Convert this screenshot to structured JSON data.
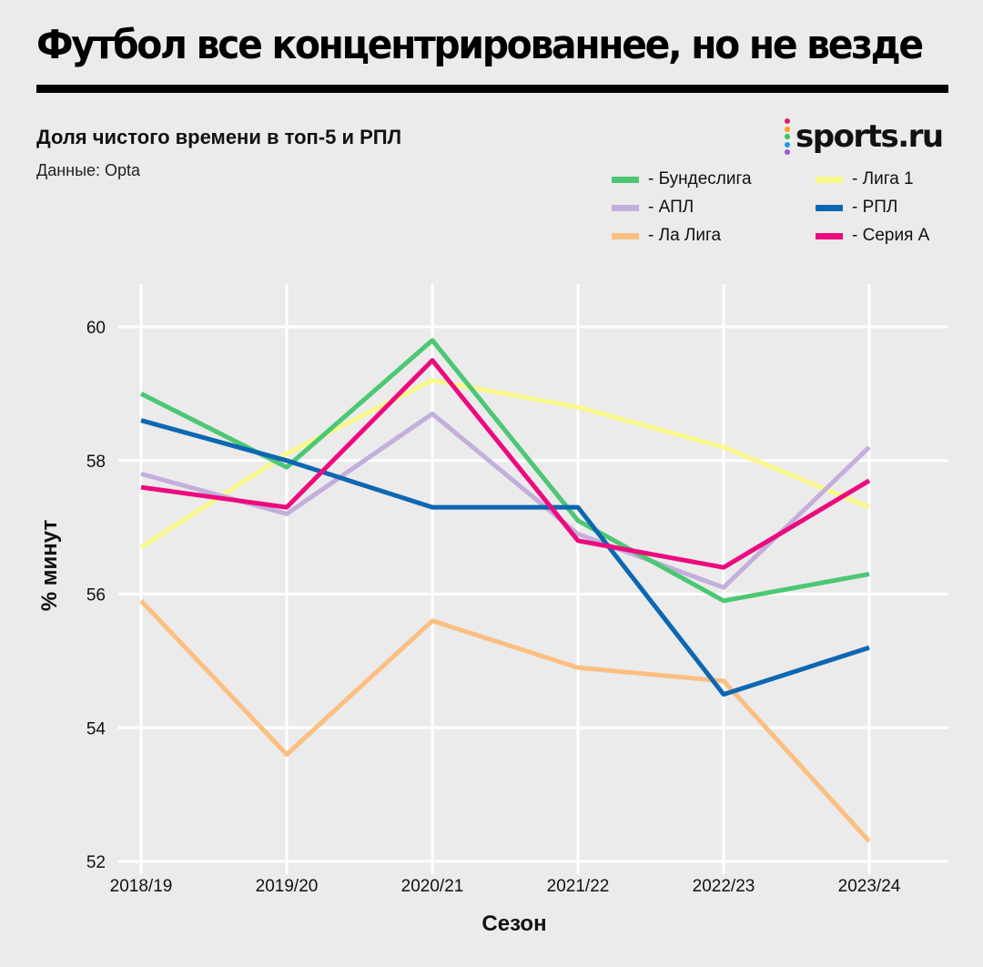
{
  "header": {
    "title": "Футбол все концентрированнее, но не везде",
    "subtitle": "Доля чистого времени в топ-5 и РПЛ",
    "source": "Данные: Opta"
  },
  "logo": {
    "text": "sports.ru",
    "dot_colors": [
      "#e8176b",
      "#f7a21b",
      "#36c45a",
      "#1e9be0",
      "#9b59d6"
    ]
  },
  "chart_data": {
    "type": "line",
    "xlabel": "Сезон",
    "ylabel": "% минут",
    "categories": [
      "2018/19",
      "2019/20",
      "2020/21",
      "2021/22",
      "2022/23",
      "2023/24"
    ],
    "ylim": [
      52,
      60
    ],
    "yticks": [
      52,
      54,
      56,
      58,
      60
    ],
    "grid": true,
    "legend_position": "top-right",
    "series": [
      {
        "name": "Бундеслига",
        "color": "#4cc774",
        "values": [
          59.0,
          57.9,
          59.8,
          57.1,
          55.9,
          56.3
        ]
      },
      {
        "name": "АПЛ",
        "color": "#c4aedc",
        "values": [
          57.8,
          57.2,
          58.7,
          56.9,
          56.1,
          58.2
        ]
      },
      {
        "name": "Ла Лига",
        "color": "#fbbf82",
        "values": [
          55.9,
          53.6,
          55.6,
          54.9,
          54.7,
          52.3
        ]
      },
      {
        "name": "Лига 1",
        "color": "#faf98c",
        "values": [
          56.7,
          58.1,
          59.2,
          58.8,
          58.2,
          57.3
        ]
      },
      {
        "name": "РПЛ",
        "color": "#0d67b1",
        "values": [
          58.6,
          58.0,
          57.3,
          57.3,
          54.5,
          55.2
        ]
      },
      {
        "name": "Серия А",
        "color": "#ec0b7e",
        "values": [
          57.6,
          57.3,
          59.5,
          56.8,
          56.4,
          57.7
        ]
      }
    ]
  }
}
